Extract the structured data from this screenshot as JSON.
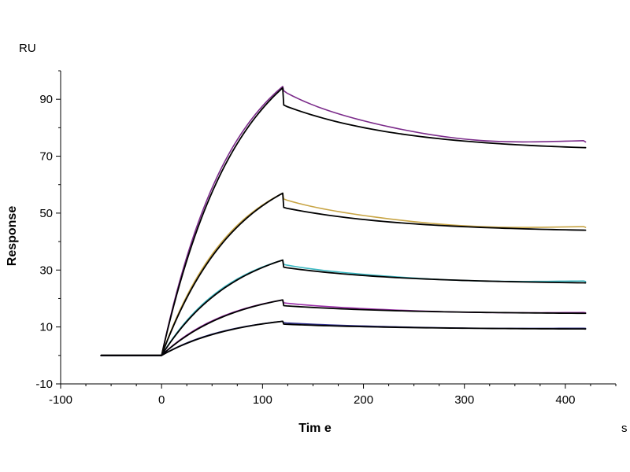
{
  "chart_data": {
    "type": "line",
    "title": "",
    "xlabel": "Tim e",
    "ylabel": "Response",
    "x_unit": "s",
    "y_unit": "RU",
    "xlim": [
      -100,
      450
    ],
    "ylim": [
      -10,
      100
    ],
    "x_ticks": [
      -100,
      0,
      100,
      200,
      300,
      400
    ],
    "y_ticks": [
      -10,
      10,
      30,
      50,
      70,
      90
    ],
    "x_tick_labels": [
      "-100",
      "0",
      "100",
      "200",
      "300",
      "400"
    ],
    "y_tick_labels": [
      "-10",
      "10",
      "30",
      "50",
      "70",
      "90"
    ],
    "grid": false,
    "legend": "none",
    "x_start": -60,
    "association_start": 0,
    "dissociation_start": 120,
    "x_end": 420,
    "series": [
      {
        "role": "measured",
        "color": "#7b2b8a",
        "peak": 94.5,
        "dissociation_start_value": 93,
        "end_value": 75,
        "shape": "slow-decay"
      },
      {
        "role": "fit",
        "color": "#000000",
        "peak": 94,
        "dissociation_start_value": 88,
        "end_value": 73
      },
      {
        "role": "measured",
        "color": "#c8a545",
        "peak": 57,
        "dissociation_start_value": 55,
        "end_value": 45
      },
      {
        "role": "fit",
        "color": "#000000",
        "peak": 57,
        "dissociation_start_value": 52,
        "end_value": 44
      },
      {
        "role": "measured",
        "color": "#3bb8c2",
        "peak": 33.5,
        "dissociation_start_value": 32,
        "end_value": 26
      },
      {
        "role": "fit",
        "color": "#000000",
        "peak": 33.5,
        "dissociation_start_value": 31,
        "end_value": 25.5
      },
      {
        "role": "measured",
        "color": "#9a2ea8",
        "peak": 19.5,
        "dissociation_start_value": 18.5,
        "end_value": 15
      },
      {
        "role": "fit",
        "color": "#000000",
        "peak": 19.5,
        "dissociation_start_value": 17.5,
        "end_value": 14.8
      },
      {
        "role": "measured",
        "color": "#2e2e8a",
        "peak": 12,
        "dissociation_start_value": 11.5,
        "end_value": 9.5
      },
      {
        "role": "fit",
        "color": "#000000",
        "peak": 12,
        "dissociation_start_value": 11,
        "end_value": 9.3
      }
    ]
  }
}
